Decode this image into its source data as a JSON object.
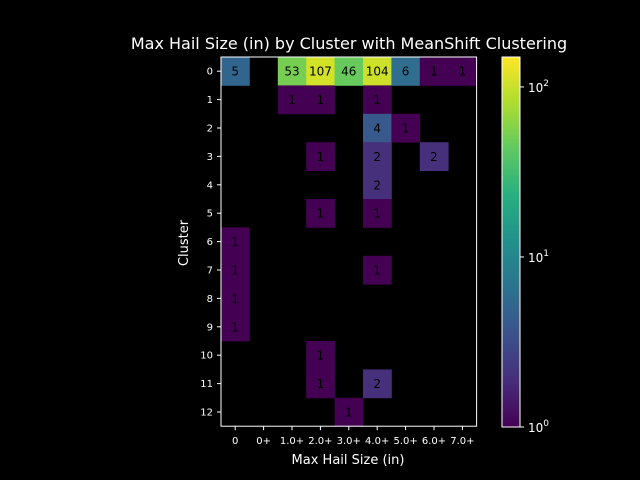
{
  "chart_data": {
    "type": "heatmap",
    "title": "Max Hail Size (in) by Cluster with MeanShift Clustering",
    "xlabel": "Max Hail Size (in)",
    "ylabel": "Cluster",
    "x_categories": [
      "0",
      "0+",
      "1.0+",
      "2.0+",
      "3.0+",
      "4.0+",
      "5.0+",
      "6.0+",
      "7.0+"
    ],
    "y_categories": [
      "0",
      "1",
      "2",
      "3",
      "4",
      "5",
      "6",
      "7",
      "8",
      "9",
      "10",
      "11",
      "12"
    ],
    "values": [
      [
        5,
        null,
        53,
        107,
        46,
        104,
        6,
        1,
        1
      ],
      [
        null,
        null,
        1,
        1,
        null,
        1,
        null,
        null,
        null
      ],
      [
        null,
        null,
        null,
        null,
        null,
        4,
        1,
        null,
        null
      ],
      [
        null,
        null,
        null,
        1,
        null,
        2,
        null,
        2,
        null
      ],
      [
        null,
        null,
        null,
        null,
        null,
        2,
        null,
        null,
        null
      ],
      [
        null,
        null,
        null,
        1,
        null,
        1,
        null,
        null,
        null
      ],
      [
        1,
        null,
        null,
        null,
        null,
        null,
        null,
        null,
        null
      ],
      [
        1,
        null,
        null,
        null,
        null,
        1,
        null,
        null,
        null
      ],
      [
        1,
        null,
        null,
        null,
        null,
        null,
        null,
        null,
        null
      ],
      [
        1,
        null,
        null,
        null,
        null,
        null,
        null,
        null,
        null
      ],
      [
        null,
        null,
        null,
        1,
        null,
        null,
        null,
        null,
        null
      ],
      [
        null,
        null,
        null,
        1,
        null,
        2,
        null,
        null,
        null
      ],
      [
        null,
        null,
        null,
        null,
        1,
        null,
        null,
        null,
        null
      ]
    ],
    "colorscale": "viridis",
    "color_scale_type": "log",
    "colorbar_range": [
      1,
      150
    ],
    "colorbar_ticks": [
      {
        "base": "10",
        "exp": "0"
      },
      {
        "base": "10",
        "exp": "1"
      },
      {
        "base": "10",
        "exp": "2"
      }
    ],
    "background_color": "#000000",
    "text_color": "#ffffff"
  }
}
